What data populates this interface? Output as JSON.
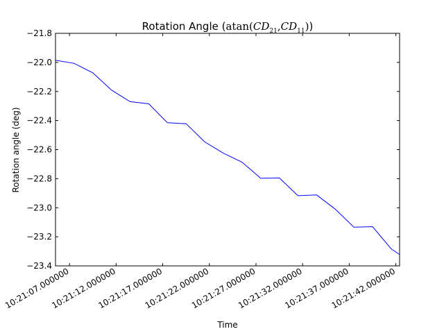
{
  "chart_data": {
    "type": "line",
    "title": {
      "prefix": "Rotation Angle (",
      "func": "atan",
      "open": "(",
      "arg1": "CD",
      "arg1_sub": "21",
      "comma": ",",
      "arg2": "CD",
      "arg2_sub": "11",
      "close": ")",
      "suffix": ")"
    },
    "xlabel": "Time",
    "ylabel": "Rotation angle (deg)",
    "xlim": [
      0,
      36.9
    ],
    "ylim": [
      -23.4,
      -21.8
    ],
    "y_ticks": [
      -21.8,
      -22.0,
      -22.2,
      -22.4,
      -22.6,
      -22.8,
      -23.0,
      -23.2,
      -23.4
    ],
    "x_ticks": [
      {
        "pos": 1.5,
        "label": "10:21:07.000000"
      },
      {
        "pos": 6.5,
        "label": "10:21:12.000000"
      },
      {
        "pos": 11.5,
        "label": "10:21:17.000000"
      },
      {
        "pos": 16.5,
        "label": "10:21:22.000000"
      },
      {
        "pos": 21.5,
        "label": "10:21:27.000000"
      },
      {
        "pos": 26.5,
        "label": "10:21:32.000000"
      },
      {
        "pos": 31.5,
        "label": "10:21:37.000000"
      },
      {
        "pos": 36.5,
        "label": "10:21:42.000000"
      }
    ],
    "grid": false,
    "series": [
      {
        "color": "#0000ff",
        "x": [
          0,
          2,
          4,
          6,
          8,
          10,
          12,
          14,
          16,
          18,
          20,
          22,
          24,
          26,
          28,
          30,
          32,
          34,
          36,
          38
        ],
        "y": [
          -21.985,
          -22.007,
          -22.072,
          -22.19,
          -22.27,
          -22.285,
          -22.415,
          -22.422,
          -22.547,
          -22.625,
          -22.686,
          -22.797,
          -22.795,
          -22.917,
          -22.912,
          -23.01,
          -23.134,
          -23.13,
          -23.283,
          -23.37
        ]
      }
    ]
  }
}
